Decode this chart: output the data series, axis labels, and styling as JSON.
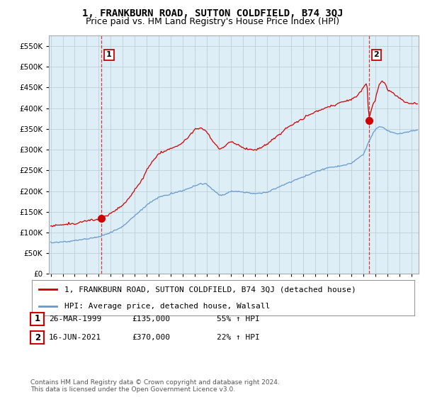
{
  "title": "1, FRANKBURN ROAD, SUTTON COLDFIELD, B74 3QJ",
  "subtitle": "Price paid vs. HM Land Registry's House Price Index (HPI)",
  "background_color": "#ffffff",
  "plot_bg_color": "#ddeef7",
  "grid_color": "#c0cfd8",
  "ylim": [
    0,
    575000
  ],
  "yticks": [
    0,
    50000,
    100000,
    150000,
    200000,
    250000,
    300000,
    350000,
    400000,
    450000,
    500000,
    550000
  ],
  "sale1": {
    "date_x": 1999.23,
    "price": 135000,
    "label": "1"
  },
  "sale2": {
    "date_x": 2021.46,
    "price": 370000,
    "label": "2"
  },
  "legend_red": "1, FRANKBURN ROAD, SUTTON COLDFIELD, B74 3QJ (detached house)",
  "legend_blue": "HPI: Average price, detached house, Walsall",
  "table_rows": [
    {
      "num": "1",
      "date": "26-MAR-1999",
      "price": "£135,000",
      "hpi": "55% ↑ HPI"
    },
    {
      "num": "2",
      "date": "16-JUN-2021",
      "price": "£370,000",
      "hpi": "22% ↑ HPI"
    }
  ],
  "footer": "Contains HM Land Registry data © Crown copyright and database right 2024.\nThis data is licensed under the Open Government Licence v3.0.",
  "red_color": "#cc0000",
  "blue_color": "#6699cc",
  "title_fontsize": 10,
  "subtitle_fontsize": 9,
  "tick_fontsize": 7.5,
  "legend_fontsize": 8,
  "table_fontsize": 8,
  "footer_fontsize": 6.5,
  "xlim_left": 1994.85,
  "xlim_right": 2025.6
}
